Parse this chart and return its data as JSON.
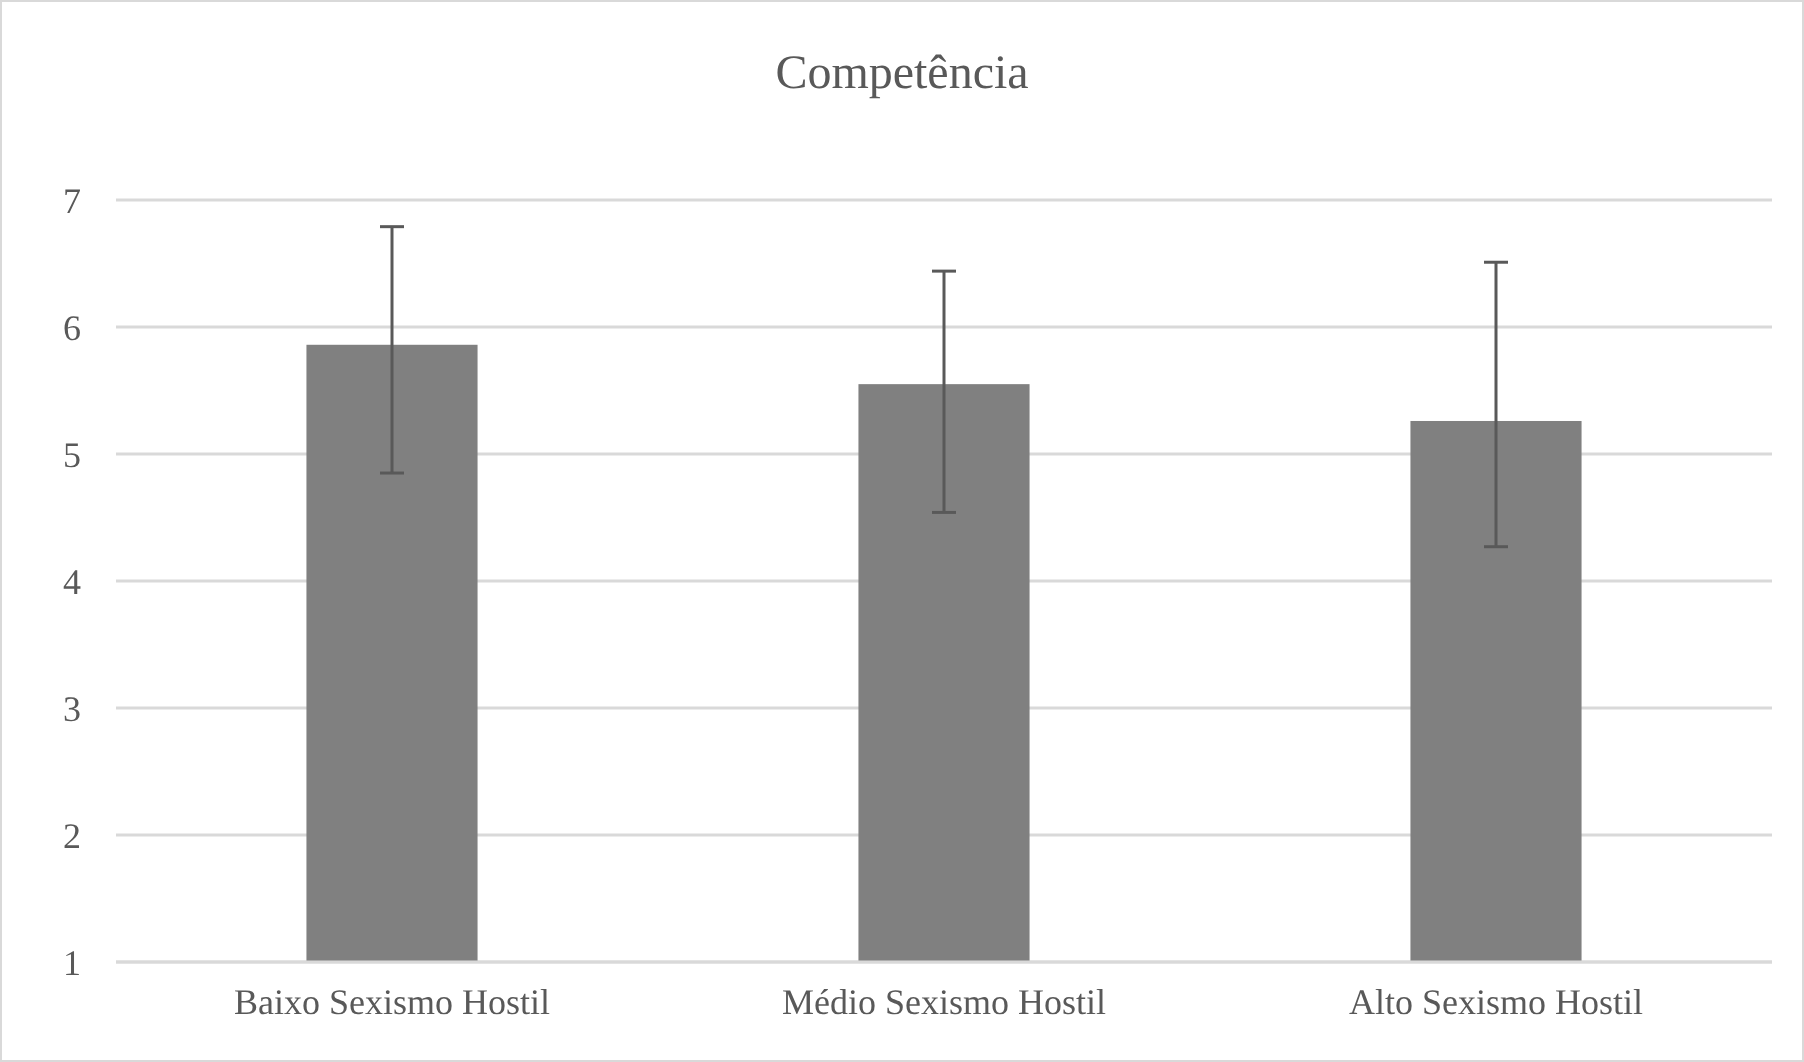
{
  "chart_data": {
    "type": "bar",
    "title": "Competência",
    "categories": [
      "Baixo Sexismo Hostil",
      "Médio Sexismo Hostil",
      "Alto Sexismo Hostil"
    ],
    "values": [
      5.86,
      5.55,
      5.26
    ],
    "errors": [
      [
        4.85,
        6.79
      ],
      [
        4.54,
        6.44
      ],
      [
        4.27,
        6.51
      ]
    ],
    "color": "#808080",
    "ylim": [
      1,
      7
    ],
    "yticks": [
      1,
      2,
      3,
      4,
      5,
      6,
      7
    ],
    "grid": "y"
  }
}
